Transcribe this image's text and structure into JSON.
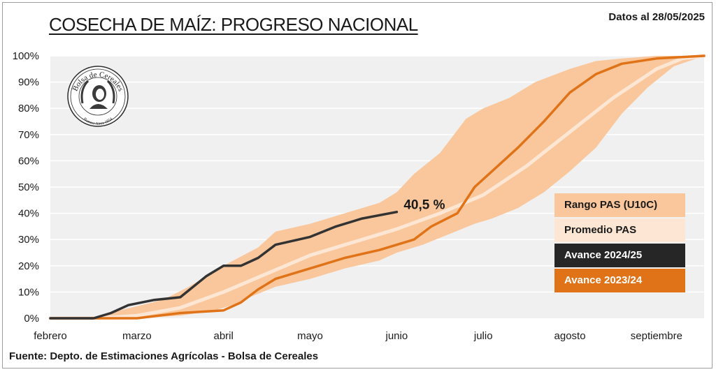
{
  "header": {
    "title": "COSECHA DE MAÍZ: PROGRESO NACIONAL",
    "date": "Datos al 28/05/2025"
  },
  "footer": {
    "source": "Fuente: Depto. de Estimaciones Agrícolas - Bolsa de Cereales"
  },
  "logo": {
    "text_top": "Bolsa de Cereales",
    "text_ring": "Comercio · es · Libertad",
    "text_bottom": "Buenos Aires 1854"
  },
  "colors": {
    "range": "#f9c79b",
    "average": "#fde6d3",
    "current": "#333333",
    "previous": "#e07318",
    "plot_bg": "#f0f0f0",
    "grid": "#ffffff"
  },
  "chart_data": {
    "type": "area",
    "title": "COSECHA DE MAÍZ: PROGRESO NACIONAL",
    "xlabel": "",
    "ylabel": "",
    "x_ticks": [
      "febrero",
      "marzo",
      "abril",
      "mayo",
      "junio",
      "julio",
      "agosto",
      "septiembre"
    ],
    "x_tick_positions": [
      0,
      1,
      2,
      3,
      4,
      5,
      6,
      7
    ],
    "xlim": [
      0,
      7.55
    ],
    "y_ticks": [
      "0%",
      "10%",
      "20%",
      "30%",
      "40%",
      "50%",
      "60%",
      "70%",
      "80%",
      "90%",
      "100%"
    ],
    "ylim": [
      0,
      100
    ],
    "grid": true,
    "legend_position": "right",
    "annotation": {
      "text": "40,5 %",
      "x": 4.0,
      "y": 40.5
    },
    "range_upper": {
      "x": [
        0,
        0.5,
        0.8,
        1.3,
        1.6,
        2.0,
        2.4,
        2.6,
        3.0,
        3.4,
        3.8,
        4.0,
        4.2,
        4.5,
        4.8,
        5.0,
        5.3,
        5.6,
        6.0,
        6.3,
        6.6,
        7.0,
        7.55
      ],
      "y": [
        0,
        0,
        3,
        7,
        12,
        20,
        27,
        33,
        36,
        40,
        44,
        48,
        55,
        63,
        76,
        80,
        84,
        90,
        95,
        98,
        99,
        100,
        100
      ]
    },
    "range_lower": {
      "x": [
        0,
        0.5,
        1.0,
        1.5,
        1.9,
        2.1,
        2.3,
        2.6,
        3.0,
        3.4,
        3.8,
        4.0,
        4.3,
        4.6,
        4.9,
        5.1,
        5.4,
        5.7,
        6.0,
        6.3,
        6.6,
        6.9,
        7.2,
        7.55
      ],
      "y": [
        0,
        0,
        0,
        1,
        3,
        5,
        8,
        12,
        15,
        19,
        22,
        25,
        28,
        32,
        36,
        38,
        42,
        48,
        56,
        65,
        78,
        88,
        96,
        100
      ]
    },
    "series": [
      {
        "name": "Promedio PAS",
        "x": [
          0,
          0.5,
          1.0,
          1.5,
          2.0,
          2.5,
          3.0,
          3.5,
          4.0,
          4.5,
          5.0,
          5.5,
          6.0,
          6.5,
          7.0,
          7.3,
          7.55
        ],
        "y": [
          0,
          0,
          1,
          4,
          10,
          17,
          24,
          29,
          34,
          40,
          47,
          58,
          71,
          84,
          95,
          99,
          100
        ]
      },
      {
        "name": "Avance 2024/25",
        "x": [
          0,
          0.5,
          0.7,
          0.9,
          1.2,
          1.5,
          1.8,
          2.0,
          2.2,
          2.4,
          2.6,
          3.0,
          3.3,
          3.6,
          4.0
        ],
        "y": [
          0,
          0,
          2,
          5,
          7,
          8,
          16,
          20,
          20,
          23,
          28,
          31,
          35,
          38,
          40.5
        ]
      },
      {
        "name": "Avance 2023/24",
        "x": [
          0,
          0.5,
          1.0,
          1.5,
          2.0,
          2.2,
          2.4,
          2.6,
          3.0,
          3.4,
          3.8,
          4.0,
          4.2,
          4.4,
          4.7,
          4.9,
          5.1,
          5.4,
          5.7,
          6.0,
          6.3,
          6.6,
          7.0,
          7.55
        ],
        "y": [
          0,
          0,
          0,
          2,
          3,
          6,
          11,
          15,
          19,
          23,
          26,
          28,
          30,
          35,
          40,
          50,
          56,
          65,
          75,
          86,
          93,
          97,
          99,
          100
        ]
      }
    ],
    "legend": [
      "Rango PAS (U10C)",
      "Promedio PAS",
      "Avance 2024/25",
      "Avance 2023/24"
    ]
  }
}
